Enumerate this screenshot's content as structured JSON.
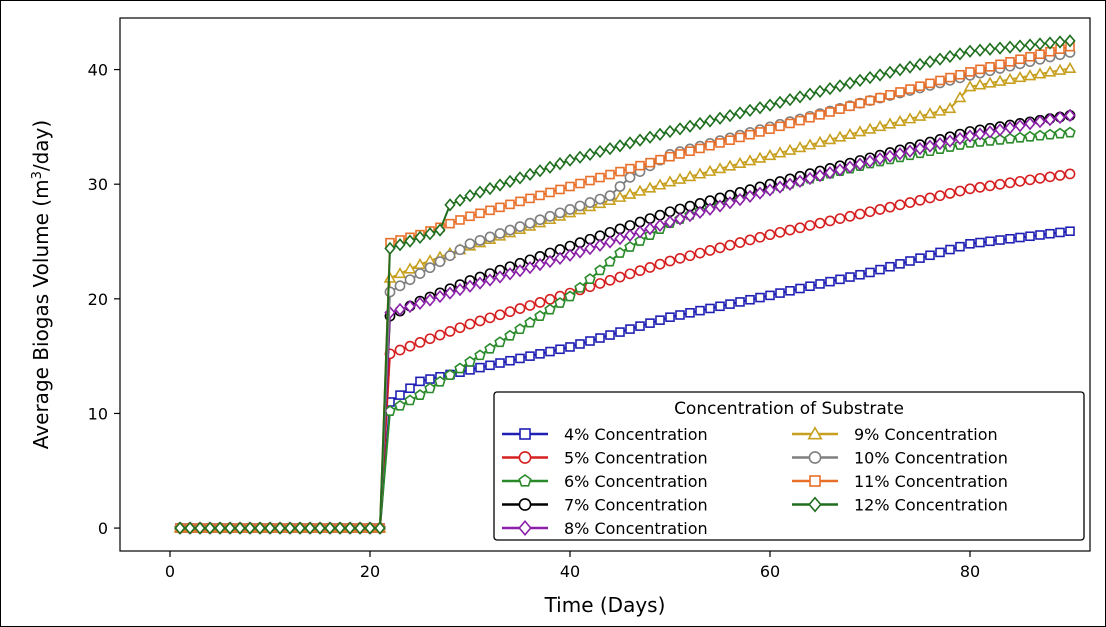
{
  "chart_data": {
    "type": "line",
    "title": "",
    "xlabel": "Time (Days)",
    "ylabel": "Average Biogas Volume (m",
    "ylabel_sup": "3",
    "ylabel_tail": "/day)",
    "xlim": [
      -5,
      92
    ],
    "ylim": [
      -2,
      44.5
    ],
    "xticks": [
      0,
      20,
      40,
      60,
      80
    ],
    "yticks": [
      0,
      10,
      20,
      30,
      40
    ],
    "grid": false,
    "legend": {
      "title": "Concentration of Substrate",
      "placement": "bottom-right",
      "columns": 2
    },
    "x_start": 1,
    "x_end": 90,
    "onset_day": 21,
    "series": [
      {
        "name": "4% Concentration",
        "color": "#1f1fb4",
        "marker": "square",
        "x": [
          1,
          21,
          22,
          25,
          30,
          40,
          50,
          60,
          70,
          80,
          90
        ],
        "y": [
          0,
          0,
          11,
          12.8,
          13.8,
          15.8,
          18.4,
          20.3,
          22.3,
          24.8,
          25.9
        ]
      },
      {
        "name": "5% Concentration",
        "color": "#d62020",
        "marker": "circle",
        "x": [
          1,
          21,
          22,
          25,
          30,
          40,
          50,
          60,
          70,
          80,
          90
        ],
        "y": [
          0,
          0,
          15.2,
          16.2,
          17.8,
          20.5,
          23.3,
          25.6,
          27.6,
          29.6,
          30.9
        ]
      },
      {
        "name": "6% Concentration",
        "color": "#2a8a2a",
        "marker": "pentagon",
        "x": [
          1,
          21,
          22,
          25,
          30,
          40,
          45,
          50,
          55,
          60,
          70,
          80,
          90
        ],
        "y": [
          0,
          0,
          10.2,
          11.6,
          14.5,
          20.2,
          24,
          26.6,
          28.4,
          29.6,
          31.8,
          33.6,
          34.5
        ]
      },
      {
        "name": "7% Concentration",
        "color": "#000000",
        "marker": "circle",
        "x": [
          1,
          21,
          22,
          25,
          30,
          40,
          50,
          60,
          70,
          80,
          90
        ],
        "y": [
          0,
          0,
          18.5,
          19.8,
          21.6,
          24.6,
          27.6,
          30,
          32.3,
          34.6,
          36
        ]
      },
      {
        "name": "8% Concentration",
        "color": "#8a1fa8",
        "marker": "diamond",
        "x": [
          1,
          21,
          22,
          25,
          30,
          40,
          50,
          60,
          70,
          80,
          90
        ],
        "y": [
          0,
          0,
          18.8,
          19.6,
          21.1,
          23.8,
          26.7,
          29.5,
          32,
          34.2,
          36
        ]
      },
      {
        "name": "9% Concentration",
        "color": "#c8a020",
        "marker": "triangle",
        "x": [
          1,
          21,
          22,
          25,
          30,
          40,
          50,
          60,
          70,
          78,
          80,
          90
        ],
        "y": [
          0,
          0,
          21.8,
          23,
          24.6,
          27.5,
          30.2,
          32.5,
          34.8,
          36.6,
          38.5,
          40.1
        ]
      },
      {
        "name": "10% Concentration",
        "color": "#7f7f7f",
        "marker": "circle",
        "x": [
          1,
          21,
          22,
          25,
          30,
          40,
          44,
          46,
          50,
          60,
          70,
          80,
          90
        ],
        "y": [
          0,
          0,
          20.6,
          22.2,
          24.8,
          27.8,
          29,
          30.6,
          32.6,
          35,
          37.3,
          39.5,
          41.5
        ]
      },
      {
        "name": "11% Concentration",
        "color": "#e8702a",
        "marker": "square",
        "x": [
          1,
          21,
          22,
          25,
          30,
          40,
          50,
          60,
          70,
          80,
          90
        ],
        "y": [
          0,
          0,
          24.9,
          25.6,
          27.2,
          29.8,
          32.4,
          34.8,
          37.3,
          39.8,
          42
        ]
      },
      {
        "name": "12% Concentration",
        "color": "#1e6e1e",
        "marker": "diamond",
        "x": [
          1,
          21,
          22,
          27,
          28,
          30,
          40,
          50,
          60,
          70,
          80,
          90
        ],
        "y": [
          0,
          0,
          24.4,
          26,
          28.2,
          29,
          32.1,
          34.6,
          36.9,
          39.3,
          41.6,
          42.5
        ]
      }
    ]
  }
}
